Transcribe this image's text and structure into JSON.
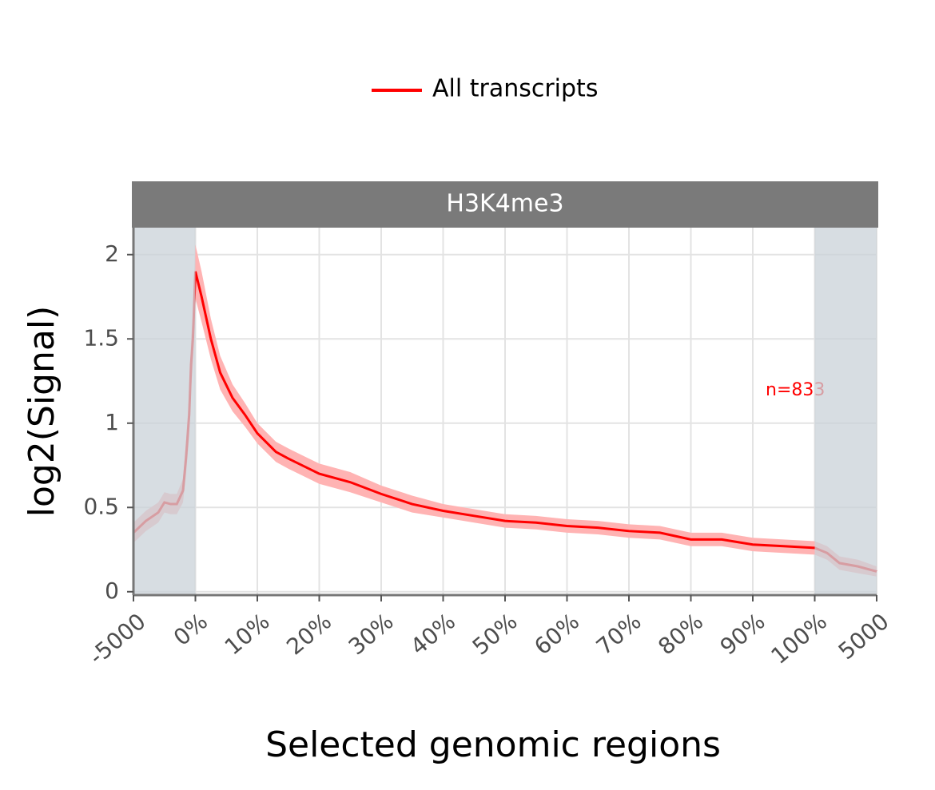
{
  "chart_data": {
    "type": "line",
    "facet_title": "H3K4me3",
    "xlabel": "Selected genomic regions",
    "ylabel": "log2(Signal)",
    "annotation": "n=833",
    "x": [
      0,
      0.2,
      0.4,
      0.5,
      0.6,
      0.7,
      0.8,
      0.85,
      0.9,
      0.93,
      0.96,
      1.0,
      1.1,
      1.25,
      1.4,
      1.6,
      1.8,
      2.0,
      2.3,
      2.5,
      3.0,
      3.5,
      4.0,
      4.5,
      5.0,
      5.5,
      6.0,
      6.5,
      7.0,
      7.5,
      8.0,
      8.5,
      9.0,
      9.5,
      10.0,
      10.5,
      11.0,
      11.2,
      11.4,
      11.7,
      12.0
    ],
    "series": [
      {
        "name": "All transcripts",
        "color": "#ff0000",
        "band_color": "#ffb3b3",
        "values": [
          0.35,
          0.42,
          0.47,
          0.53,
          0.52,
          0.52,
          0.6,
          0.8,
          1.05,
          1.35,
          1.5,
          1.9,
          1.75,
          1.5,
          1.3,
          1.15,
          1.05,
          0.94,
          0.83,
          0.79,
          0.7,
          0.65,
          0.58,
          0.52,
          0.48,
          0.45,
          0.42,
          0.41,
          0.39,
          0.38,
          0.36,
          0.35,
          0.31,
          0.31,
          0.28,
          0.27,
          0.26,
          0.23,
          0.17,
          0.15,
          0.12
        ],
        "lower": [
          0.29,
          0.36,
          0.41,
          0.47,
          0.46,
          0.46,
          0.53,
          0.7,
          0.92,
          1.2,
          1.35,
          1.74,
          1.6,
          1.38,
          1.2,
          1.07,
          0.98,
          0.88,
          0.77,
          0.73,
          0.64,
          0.59,
          0.53,
          0.47,
          0.44,
          0.41,
          0.38,
          0.37,
          0.35,
          0.34,
          0.32,
          0.31,
          0.27,
          0.27,
          0.24,
          0.23,
          0.22,
          0.19,
          0.13,
          0.11,
          0.09
        ],
        "upper": [
          0.41,
          0.48,
          0.53,
          0.59,
          0.58,
          0.58,
          0.67,
          0.9,
          1.18,
          1.5,
          1.65,
          2.06,
          1.9,
          1.62,
          1.4,
          1.23,
          1.12,
          1.0,
          0.89,
          0.85,
          0.76,
          0.71,
          0.63,
          0.57,
          0.52,
          0.49,
          0.46,
          0.45,
          0.43,
          0.42,
          0.4,
          0.39,
          0.35,
          0.35,
          0.32,
          0.31,
          0.3,
          0.27,
          0.21,
          0.19,
          0.15
        ]
      }
    ],
    "xlim": [
      0,
      12
    ],
    "xticks": [
      {
        "value": 0,
        "label": "-5000"
      },
      {
        "value": 1,
        "label": "0%"
      },
      {
        "value": 2,
        "label": "10%"
      },
      {
        "value": 3,
        "label": "20%"
      },
      {
        "value": 4,
        "label": "30%"
      },
      {
        "value": 5,
        "label": "40%"
      },
      {
        "value": 6,
        "label": "50%"
      },
      {
        "value": 7,
        "label": "60%"
      },
      {
        "value": 8,
        "label": "70%"
      },
      {
        "value": 9,
        "label": "80%"
      },
      {
        "value": 10,
        "label": "90%"
      },
      {
        "value": 11,
        "label": "100%"
      },
      {
        "value": 12,
        "label": "5000"
      }
    ],
    "ylim": [
      -0.02,
      2.16
    ],
    "yticks": [
      0,
      0.5,
      1,
      1.5,
      2
    ],
    "grid": true,
    "highlight": {
      "color": "#c9d1d8",
      "ranges": [
        [
          0,
          1
        ],
        [
          11,
          12
        ]
      ]
    }
  }
}
